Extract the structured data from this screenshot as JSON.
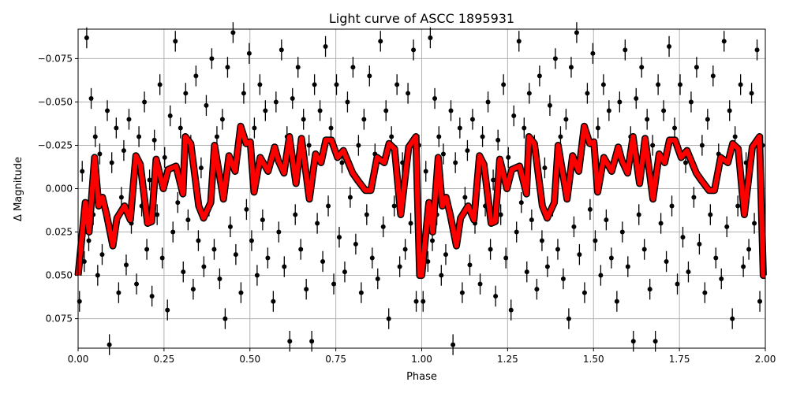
{
  "chart_data": {
    "type": "scatter",
    "title": "Light curve of ASCC 1895931",
    "xlabel": "Phase",
    "ylabel": "Δ Magnitude",
    "xlim": [
      0.0,
      2.0
    ],
    "ylim": [
      0.092,
      -0.092
    ],
    "y_inverted": true,
    "grid": true,
    "xticks": [
      "0.00",
      "0.25",
      "0.50",
      "0.75",
      "1.00",
      "1.25",
      "1.50",
      "1.75",
      "2.00"
    ],
    "xtick_values": [
      0,
      0.25,
      0.5,
      0.75,
      1.0,
      1.25,
      1.5,
      1.75,
      2.0
    ],
    "yticks": [
      "−0.075",
      "−0.050",
      "−0.025",
      "0.000",
      "0.025",
      "0.050",
      "0.075"
    ],
    "ytick_values": [
      -0.075,
      -0.05,
      -0.025,
      0,
      0.025,
      0.05,
      0.075
    ],
    "colors": {
      "points": "#000000",
      "model": "#ff0000",
      "grid": "#b0b0b0"
    },
    "observations": {
      "note_phase_folded_twice": true,
      "phase": [
        0.004,
        0.012,
        0.018,
        0.025,
        0.031,
        0.038,
        0.044,
        0.05,
        0.057,
        0.063,
        0.07,
        0.078,
        0.085,
        0.091,
        0.098,
        0.104,
        0.111,
        0.118,
        0.126,
        0.133,
        0.14,
        0.148,
        0.155,
        0.162,
        0.17,
        0.177,
        0.185,
        0.193,
        0.2,
        0.208,
        0.215,
        0.222,
        0.23,
        0.238,
        0.245,
        0.252,
        0.26,
        0.268,
        0.276,
        0.283,
        0.29,
        0.298,
        0.306,
        0.313,
        0.32,
        0.328,
        0.335,
        0.343,
        0.35,
        0.358,
        0.366,
        0.373,
        0.381,
        0.389,
        0.396,
        0.404,
        0.412,
        0.42,
        0.428,
        0.435,
        0.443,
        0.451,
        0.459,
        0.467,
        0.474,
        0.482,
        0.49,
        0.498,
        0.505,
        0.513,
        0.521,
        0.529,
        0.537,
        0.545,
        0.552,
        0.56,
        0.568,
        0.576,
        0.584,
        0.592,
        0.6,
        0.608,
        0.616,
        0.624,
        0.632,
        0.64,
        0.648,
        0.656,
        0.664,
        0.672,
        0.68,
        0.688,
        0.696,
        0.704,
        0.712,
        0.72,
        0.728,
        0.736,
        0.744,
        0.752,
        0.76,
        0.768,
        0.776,
        0.784,
        0.792,
        0.8,
        0.808,
        0.816,
        0.824,
        0.832,
        0.84,
        0.848,
        0.856,
        0.864,
        0.872,
        0.88,
        0.888,
        0.896,
        0.904,
        0.912,
        0.92,
        0.928,
        0.936,
        0.944,
        0.952,
        0.96,
        0.968,
        0.976,
        0.984,
        0.992
      ],
      "mag": [
        0.065,
        -0.01,
        0.042,
        -0.087,
        0.03,
        -0.052,
        0.015,
        -0.03,
        0.05,
        -0.02,
        0.038,
        0.011,
        -0.045,
        0.09,
        -0.015,
        0.028,
        -0.035,
        0.06,
        0.005,
        -0.022,
        0.044,
        -0.04,
        0.02,
        -0.012,
        0.055,
        -0.03,
        0.01,
        -0.05,
        0.035,
        -0.005,
        0.062,
        -0.028,
        0.015,
        -0.06,
        0.04,
        -0.018,
        0.07,
        -0.042,
        0.025,
        -0.085,
        0.008,
        -0.035,
        0.048,
        -0.055,
        0.018,
        -0.025,
        0.058,
        -0.065,
        0.03,
        -0.012,
        0.045,
        -0.048,
        0.01,
        -0.075,
        0.035,
        -0.03,
        0.052,
        -0.04,
        0.075,
        -0.07,
        0.022,
        -0.09,
        0.038,
        -0.02,
        0.06,
        -0.055,
        0.012,
        -0.078,
        0.03,
        -0.035,
        0.05,
        -0.06,
        0.018,
        -0.045,
        0.04,
        -0.015,
        0.065,
        -0.05,
        0.025,
        -0.08,
        0.045,
        -0.03,
        0.088,
        -0.052,
        0.015,
        -0.07,
        0.035,
        -0.04,
        0.058,
        -0.025,
        0.088,
        -0.06,
        0.02,
        -0.045,
        0.042,
        -0.082,
        0.01,
        -0.035,
        0.055,
        -0.06,
        0.028,
        -0.015,
        0.048,
        -0.05,
        0.005,
        -0.07,
        0.032,
        -0.025,
        0.06,
        -0.04,
        0.015,
        -0.065,
        0.04,
        -0.02,
        0.052,
        -0.085,
        0.022,
        -0.045,
        0.075,
        -0.03,
        0.01,
        -0.06,
        0.045,
        -0.015,
        0.035,
        -0.055,
        0.02,
        -0.08,
        0.065,
        -0.025
      ],
      "error": 0.006
    },
    "model": {
      "phase": [
        0.0,
        0.021,
        0.032,
        0.048,
        0.06,
        0.071,
        0.083,
        0.101,
        0.113,
        0.135,
        0.152,
        0.168,
        0.181,
        0.202,
        0.214,
        0.227,
        0.248,
        0.262,
        0.285,
        0.305,
        0.312,
        0.328,
        0.351,
        0.365,
        0.386,
        0.397,
        0.423,
        0.439,
        0.457,
        0.473,
        0.489,
        0.501,
        0.512,
        0.53,
        0.553,
        0.572,
        0.583,
        0.599,
        0.615,
        0.634,
        0.65,
        0.673,
        0.691,
        0.707,
        0.721,
        0.737,
        0.755,
        0.772,
        0.799,
        0.813,
        0.836,
        0.852,
        0.87,
        0.891,
        0.905,
        0.921,
        0.939,
        0.962,
        0.983,
        0.994,
        1.0
      ],
      "mag": [
        0.05,
        0.008,
        0.025,
        -0.018,
        0.01,
        0.005,
        0.015,
        0.033,
        0.017,
        0.01,
        0.018,
        -0.019,
        -0.014,
        0.02,
        0.019,
        -0.017,
        0.0,
        -0.011,
        -0.013,
        0.003,
        -0.03,
        -0.026,
        0.01,
        0.017,
        0.008,
        -0.025,
        0.006,
        -0.019,
        -0.01,
        -0.036,
        -0.026,
        -0.027,
        0.002,
        -0.018,
        -0.01,
        -0.024,
        -0.016,
        -0.009,
        -0.03,
        -0.003,
        -0.029,
        0.006,
        -0.02,
        -0.015,
        -0.028,
        -0.028,
        -0.018,
        -0.022,
        -0.009,
        -0.005,
        0.001,
        0.001,
        -0.018,
        -0.015,
        -0.026,
        -0.023,
        0.015,
        -0.024,
        -0.03,
        0.05,
        0.05
      ]
    }
  }
}
